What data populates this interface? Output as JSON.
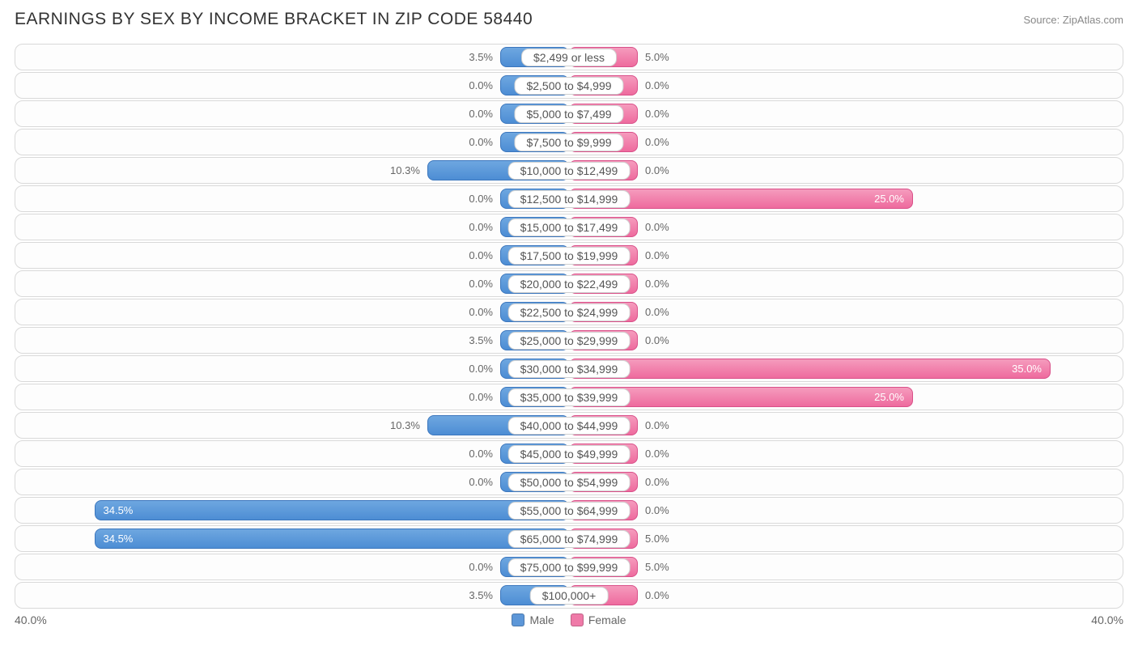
{
  "title": "EARNINGS BY SEX BY INCOME BRACKET IN ZIP CODE 58440",
  "source": "Source: ZipAtlas.com",
  "chart": {
    "type": "diverging-bar",
    "axis_max_pct": 40.0,
    "axis_label_left": "40.0%",
    "axis_label_right": "40.0%",
    "colors": {
      "male_fill": "#5d97d8",
      "male_border": "#3b76bd",
      "female_fill": "#ef7aa8",
      "female_border": "#d95089",
      "row_border": "#d9d9d9",
      "row_bg": "#fdfdfd",
      "text": "#555555",
      "text_muted": "#888888"
    },
    "min_bar_pct": 5.0,
    "legend": {
      "male": "Male",
      "female": "Female"
    },
    "rows": [
      {
        "label": "$2,499 or less",
        "male": 3.5,
        "female": 5.0
      },
      {
        "label": "$2,500 to $4,999",
        "male": 0.0,
        "female": 0.0
      },
      {
        "label": "$5,000 to $7,499",
        "male": 0.0,
        "female": 0.0
      },
      {
        "label": "$7,500 to $9,999",
        "male": 0.0,
        "female": 0.0
      },
      {
        "label": "$10,000 to $12,499",
        "male": 10.3,
        "female": 0.0
      },
      {
        "label": "$12,500 to $14,999",
        "male": 0.0,
        "female": 25.0
      },
      {
        "label": "$15,000 to $17,499",
        "male": 0.0,
        "female": 0.0
      },
      {
        "label": "$17,500 to $19,999",
        "male": 0.0,
        "female": 0.0
      },
      {
        "label": "$20,000 to $22,499",
        "male": 0.0,
        "female": 0.0
      },
      {
        "label": "$22,500 to $24,999",
        "male": 0.0,
        "female": 0.0
      },
      {
        "label": "$25,000 to $29,999",
        "male": 3.5,
        "female": 0.0
      },
      {
        "label": "$30,000 to $34,999",
        "male": 0.0,
        "female": 35.0
      },
      {
        "label": "$35,000 to $39,999",
        "male": 0.0,
        "female": 25.0
      },
      {
        "label": "$40,000 to $44,999",
        "male": 10.3,
        "female": 0.0
      },
      {
        "label": "$45,000 to $49,999",
        "male": 0.0,
        "female": 0.0
      },
      {
        "label": "$50,000 to $54,999",
        "male": 0.0,
        "female": 0.0
      },
      {
        "label": "$55,000 to $64,999",
        "male": 34.5,
        "female": 0.0
      },
      {
        "label": "$65,000 to $74,999",
        "male": 34.5,
        "female": 5.0
      },
      {
        "label": "$75,000 to $99,999",
        "male": 0.0,
        "female": 5.0
      },
      {
        "label": "$100,000+",
        "male": 3.5,
        "female": 0.0
      }
    ]
  }
}
